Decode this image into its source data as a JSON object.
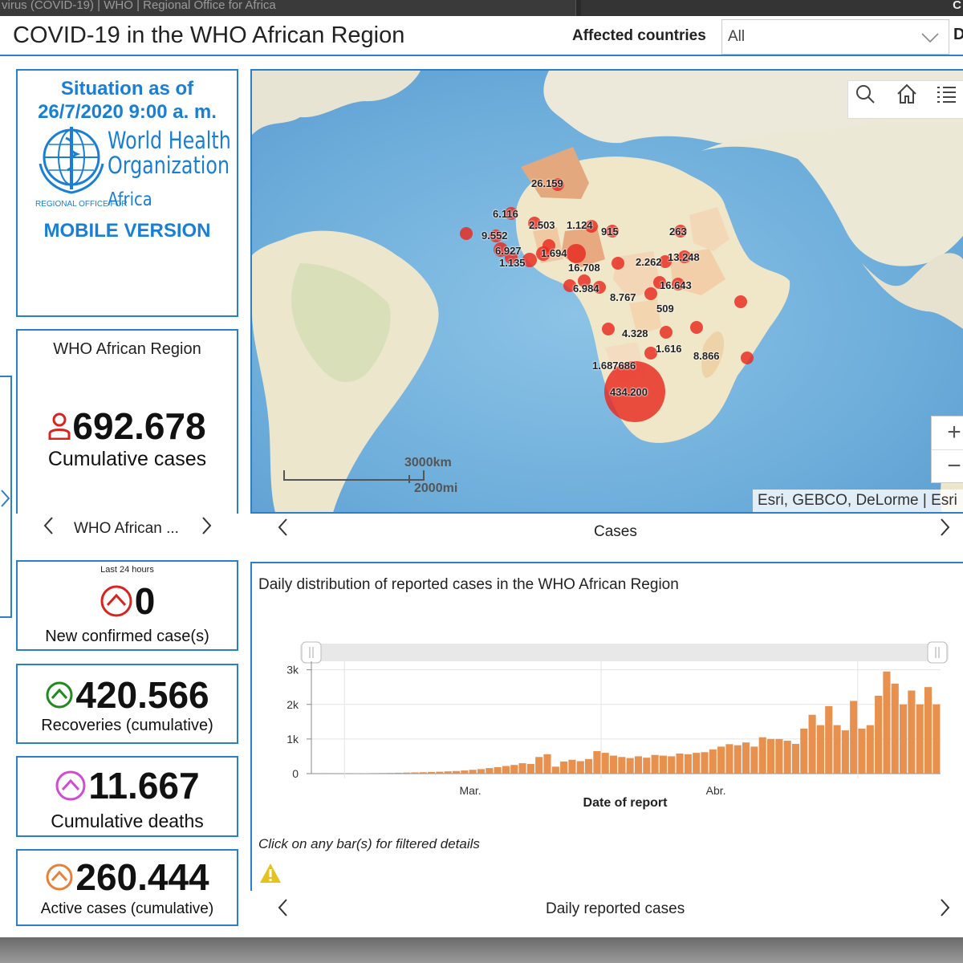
{
  "browser": {
    "tab_title": "virus (COVID-19) | WHO | Regional Office for Africa",
    "tab2_label": "C"
  },
  "header": {
    "title": "COVID-19 in the WHO African Region",
    "filter_label": "Affected countries",
    "filter_value": "All",
    "extra": "D"
  },
  "situation": {
    "line1": "Situation as of",
    "line2": "26/7/2020 9:00 a. m.",
    "logo_line1": "World Health",
    "logo_line2": "Organization",
    "logo_regional": "REGIONAL OFFICE FOR",
    "logo_region": "Africa",
    "mobile": "MOBILE VERSION"
  },
  "cumulative": {
    "region": "WHO African Region",
    "value": "692.678",
    "caption": "Cumulative cases",
    "nav_label": "WHO African ..."
  },
  "new_cases": {
    "header": "Last 24 hours",
    "value": "0",
    "caption": "New confirmed case(s)"
  },
  "recoveries": {
    "value": "420.566",
    "caption": "Recoveries (cumulative)"
  },
  "deaths": {
    "value": "11.667",
    "caption": "Cumulative deaths"
  },
  "active": {
    "value": "260.444",
    "caption": "Active cases (cumulative)"
  },
  "colors": {
    "accent": "#2d7fc9",
    "who_blue": "#1a7fd4",
    "new_red": "#d9231f",
    "recover_green": "#1f8a1f",
    "death_pink": "#d14bd1",
    "active_orange": "#e8803a",
    "bar": "#e8904e",
    "bubble": "#e8281e"
  },
  "map": {
    "nav_label": "Cases",
    "attribution": "Esri, GEBCO, DeLorme | Esri",
    "scale_km": "3000km",
    "scale_mi": "2000mi",
    "tools": [
      "search-icon",
      "home-icon",
      "list-icon"
    ],
    "labels": [
      {
        "t": "26.159"
      },
      {
        "t": "6.116"
      },
      {
        "t": "2.503"
      },
      {
        "t": "1.124"
      },
      {
        "t": "915"
      },
      {
        "t": "263"
      },
      {
        "t": "9.552"
      },
      {
        "t": "6.927"
      },
      {
        "t": "1.694"
      },
      {
        "t": "1.135"
      },
      {
        "t": "16.708"
      },
      {
        "t": "2.262"
      },
      {
        "t": "13.248"
      },
      {
        "t": "16.643"
      },
      {
        "t": "6.984"
      },
      {
        "t": "8.767"
      },
      {
        "t": "509"
      },
      {
        "t": "4.328"
      },
      {
        "t": "1.616"
      },
      {
        "t": "8.866"
      },
      {
        "t": "1.687686"
      },
      {
        "t": "434.200"
      }
    ]
  },
  "chart": {
    "title": "Daily distribution of reported cases in the WHO African Region",
    "note": "Click on any bar(s) for filtered details",
    "nav_label": "Daily reported cases",
    "x_title": "Date of report"
  },
  "chart_data": {
    "type": "bar",
    "title": "Daily distribution of reported cases in the WHO African Region",
    "xlabel": "Date of report",
    "ylabel": "",
    "ylim": [
      0,
      3200
    ],
    "yticks": [
      "0",
      "1k",
      "2k",
      "3k"
    ],
    "xtick_labels": [
      "Mar.",
      "Abr."
    ],
    "values": [
      5,
      3,
      4,
      6,
      8,
      10,
      12,
      15,
      18,
      20,
      25,
      30,
      35,
      40,
      48,
      55,
      65,
      75,
      90,
      110,
      130,
      160,
      185,
      220,
      250,
      300,
      280,
      480,
      560,
      200,
      350,
      400,
      360,
      420,
      650,
      600,
      520,
      480,
      450,
      500,
      460,
      540,
      520,
      500,
      580,
      560,
      600,
      620,
      700,
      780,
      850,
      820,
      900,
      780,
      1050,
      1000,
      1000,
      950,
      860,
      1300,
      1700,
      1400,
      1950,
      1400,
      1250,
      2100,
      1300,
      1400,
      2250,
      2950,
      2600,
      2000,
      2400,
      2000,
      2500,
      2000
    ]
  }
}
